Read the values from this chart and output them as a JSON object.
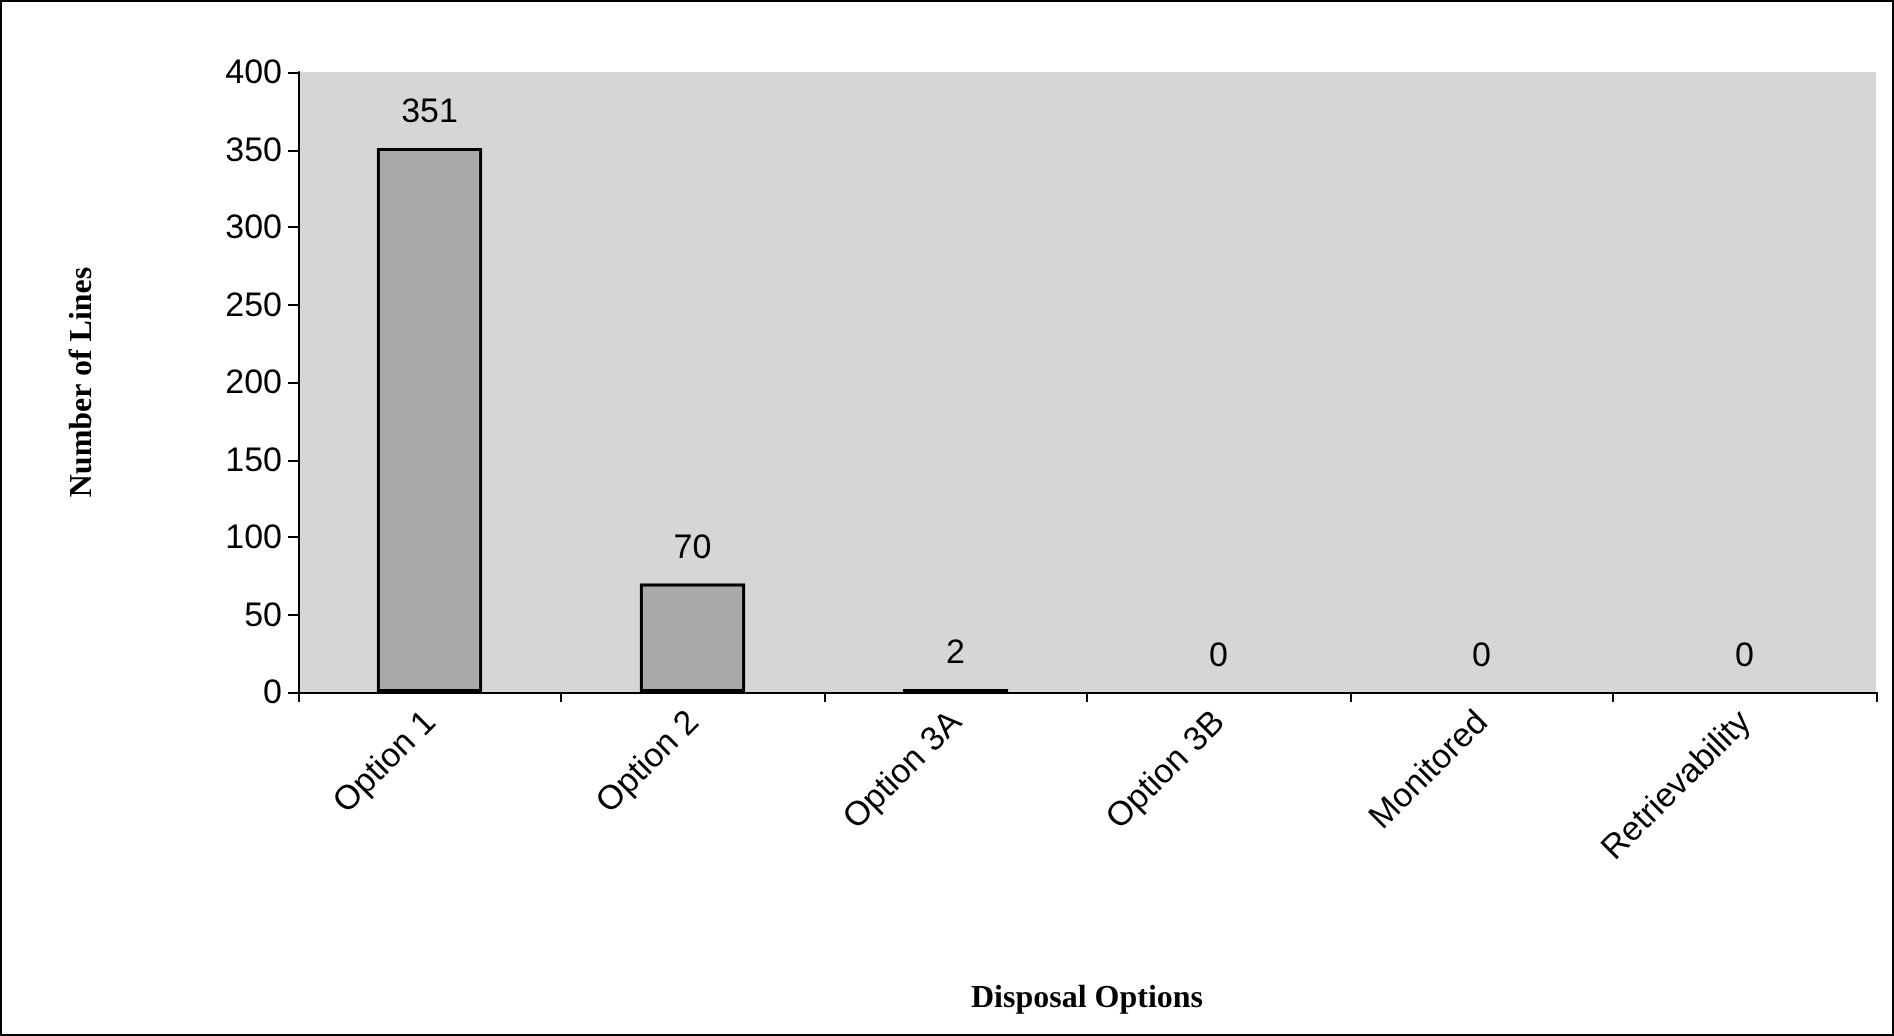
{
  "chart_data": {
    "type": "bar",
    "xlabel": "Disposal Options",
    "ylabel": "Number of Lines",
    "categories": [
      "Option 1",
      "Option 2",
      "Option 3A",
      "Option 3B",
      "Monitored",
      "Retrievability"
    ],
    "values": [
      351,
      70,
      2,
      0,
      0,
      0
    ],
    "color": "#a9a9a9",
    "ylim": [
      0,
      400
    ],
    "yticks": [
      0,
      50,
      100,
      150,
      200,
      250,
      300,
      350,
      400
    ],
    "grid": false,
    "data_labels": true
  }
}
